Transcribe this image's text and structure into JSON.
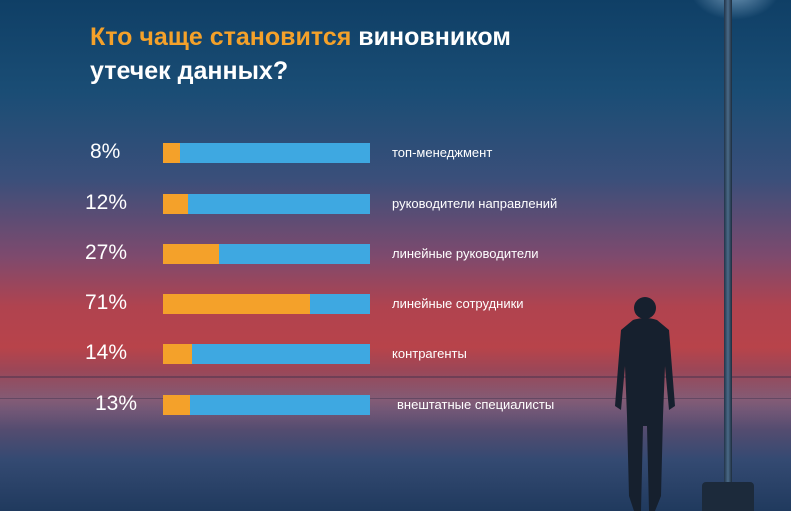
{
  "title": {
    "accent": "Кто чаще становится",
    "rest_line1": "виновником",
    "rest_line2": "утечек данных?"
  },
  "chart_data": {
    "type": "bar",
    "orientation": "horizontal",
    "stacked_to": 100,
    "colors": {
      "share": "#f4a12a",
      "remainder": "#3ea8e1",
      "accent": "#f4a12a"
    },
    "categories": [
      "топ-менеджмент",
      "руководители направлений",
      "линейные руководители",
      "линейные сотрудники",
      "контрагенты",
      "внештатные специалисты"
    ],
    "value_labels": [
      "8%",
      "12%",
      "27%",
      "71%",
      "14%",
      "13%"
    ],
    "values": [
      8,
      12,
      27,
      71,
      14,
      13
    ],
    "xlim": [
      0,
      100
    ]
  }
}
